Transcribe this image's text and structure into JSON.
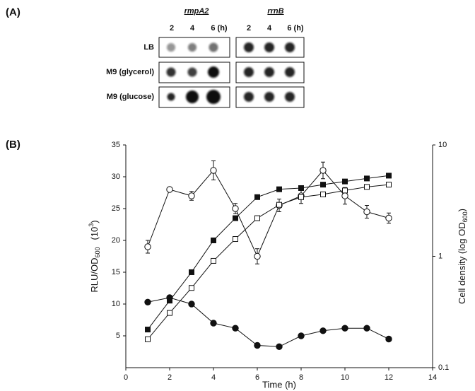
{
  "panel_a": {
    "label": "(A)",
    "genes": [
      "rmpA2",
      "rrnB"
    ],
    "times": [
      "2",
      "4",
      "6 (h)"
    ],
    "conditions": [
      "LB",
      "M9 (glycerol)",
      "M9 (glucose)"
    ]
  },
  "chart_data": {
    "type": "line",
    "label": "(B)",
    "xlabel": "Time (h)",
    "ylabel": [
      "RLU/OD",
      "600",
      "(10",
      "3",
      ")"
    ],
    "y2label": [
      "Cell density (log OD",
      "600",
      ")"
    ],
    "x": [
      1,
      2,
      3,
      4,
      5,
      6,
      7,
      8,
      9,
      10,
      11,
      12
    ],
    "xlim": [
      0,
      14
    ],
    "xticks": [
      0,
      2,
      4,
      6,
      8,
      10,
      12,
      14
    ],
    "ylim": [
      0,
      35
    ],
    "yticks": [
      5,
      10,
      15,
      20,
      25,
      30,
      35
    ],
    "y2lim": [
      0.1,
      10
    ],
    "y2ticks": [
      0.1,
      1,
      10
    ],
    "y2log": true,
    "series": [
      {
        "marker": "circle",
        "filled": false,
        "color": "#111",
        "values": [
          19,
          28,
          27,
          31,
          25,
          17.5,
          25.5,
          27,
          31,
          27,
          24.5,
          23.5
        ],
        "errors": [
          1,
          0.3,
          0.7,
          1.5,
          0.8,
          1.2,
          1,
          1.2,
          1.3,
          1.3,
          1,
          0.8
        ]
      },
      {
        "marker": "circle",
        "filled": true,
        "color": "#111",
        "values": [
          10.3,
          11,
          10,
          7,
          6.2,
          3.5,
          3.3,
          5,
          5.8,
          6.2,
          6.2,
          4.5
        ]
      },
      {
        "marker": "square",
        "filled": true,
        "color": "#111",
        "axis": "y2",
        "values": [
          0.22,
          0.4,
          0.72,
          1.39,
          2.2,
          3.4,
          4.0,
          4.1,
          4.4,
          4.7,
          5.0,
          5.3
        ]
      },
      {
        "marker": "square",
        "filled": false,
        "color": "#111",
        "axis": "y2",
        "values": [
          0.18,
          0.31,
          0.52,
          0.91,
          1.43,
          2.2,
          2.9,
          3.4,
          3.6,
          3.9,
          4.2,
          4.4
        ]
      }
    ]
  }
}
